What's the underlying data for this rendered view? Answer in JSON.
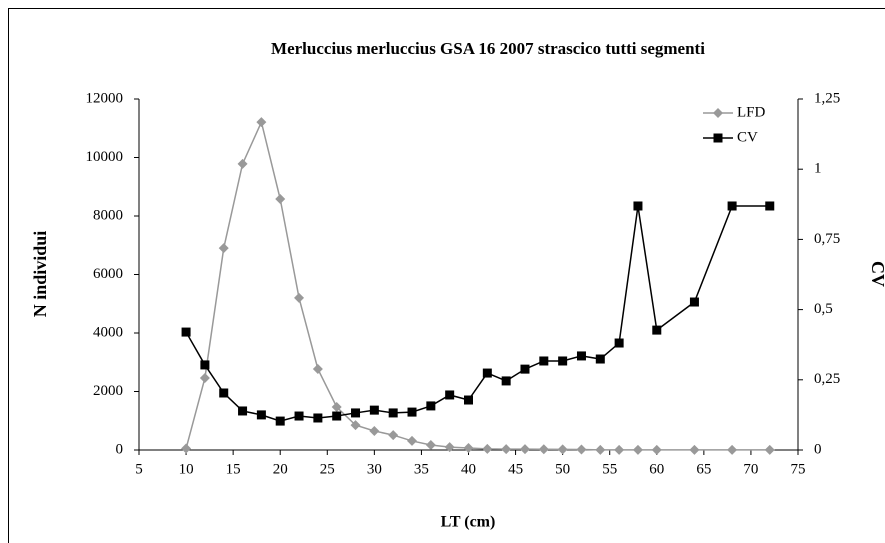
{
  "chart_data": {
    "type": "line",
    "title": "Merluccius merluccius GSA 16 2007 strascico tutti segmenti",
    "xlabel": "LT (cm)",
    "ylabel": "N individui",
    "y2label": "CV",
    "xlim": [
      5,
      75
    ],
    "xticks": [
      5,
      10,
      15,
      20,
      25,
      30,
      35,
      40,
      45,
      50,
      55,
      60,
      65,
      70,
      75
    ],
    "ylim": [
      0,
      12000
    ],
    "yticks": [
      0,
      2000,
      4000,
      6000,
      8000,
      10000,
      12000
    ],
    "y2lim": [
      0,
      1.25
    ],
    "y2ticks": [
      0,
      {
        "value": 0.25,
        "label": "0,25"
      },
      {
        "value": 0.5,
        "label": "0,5"
      },
      {
        "value": 0.75,
        "label": "0,75"
      },
      1,
      {
        "value": 1.25,
        "label": "1,25"
      }
    ],
    "legend": "upper right",
    "x": [
      10,
      12,
      14,
      16,
      18,
      20,
      22,
      24,
      26,
      28,
      30,
      32,
      34,
      36,
      38,
      40,
      42,
      44,
      46,
      48,
      50,
      52,
      54,
      56,
      58,
      60,
      64,
      68,
      72
    ],
    "series": [
      {
        "name": "LFD",
        "color": "#999999",
        "marker": "diamond",
        "axis": "y",
        "values": [
          50,
          2460,
          6900,
          9780,
          11210,
          8580,
          5200,
          2770,
          1470,
          850,
          650,
          510,
          310,
          170,
          100,
          70,
          40,
          30,
          30,
          25,
          20,
          15,
          5,
          5,
          5,
          5,
          5,
          5,
          5
        ]
      },
      {
        "name": "CV",
        "color": "#000000",
        "marker": "square",
        "axis": "y2",
        "values": [
          0.42,
          0.303,
          0.203,
          0.139,
          0.125,
          0.103,
          0.121,
          0.114,
          0.121,
          0.132,
          0.142,
          0.132,
          0.135,
          0.157,
          0.196,
          0.178,
          0.274,
          0.246,
          0.288,
          0.317,
          0.317,
          0.335,
          0.324,
          0.381,
          0.869,
          0.427,
          0.527,
          0.869,
          0.869
        ]
      }
    ]
  }
}
